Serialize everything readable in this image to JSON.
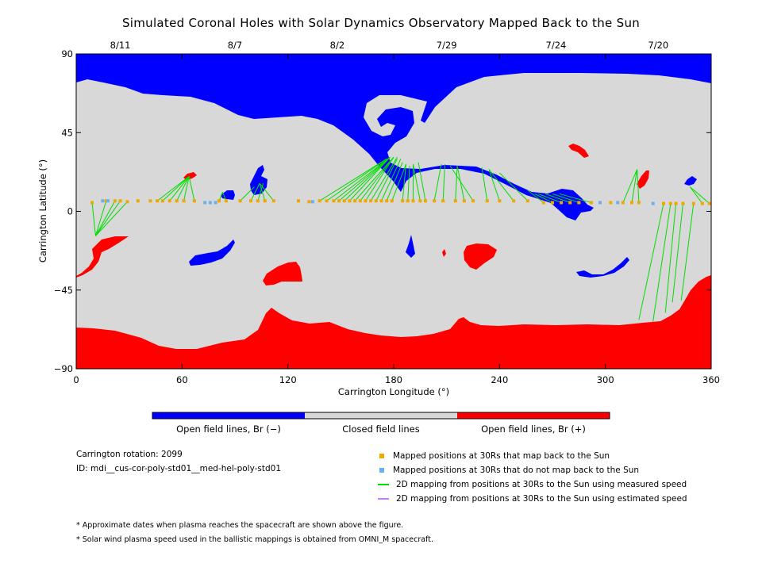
{
  "title": "Simulated Coronal Holes with Solar Dynamics Observatory Mapped Back to the Sun",
  "chart_data": {
    "type": "scatter",
    "title": "Simulated Coronal Holes with Solar Dynamics Observatory Mapped Back to the Sun",
    "xlabel": "Carrington Longitude (°)",
    "ylabel": "Carrington Latitude (°)",
    "xlim": [
      0,
      360
    ],
    "ylim": [
      -90,
      90
    ],
    "x_ticks": [
      0,
      60,
      120,
      180,
      240,
      300,
      360
    ],
    "y_ticks": [
      90,
      45,
      0,
      -45,
      -90
    ],
    "y_tick_labels": [
      "90",
      "45",
      "0",
      "−45",
      "−90"
    ],
    "date_ticks": [
      {
        "lon": 25,
        "label": "8/11"
      },
      {
        "lon": 90,
        "label": "8/7"
      },
      {
        "lon": 148,
        "label": "8/2"
      },
      {
        "lon": 210,
        "label": "7/29"
      },
      {
        "lon": 272,
        "label": "7/24"
      },
      {
        "lon": 330,
        "label": "7/20"
      }
    ],
    "colorbar": {
      "labels": [
        "Open field lines, Br (−)",
        "Closed field lines",
        "Open field lines, Br (+)"
      ],
      "colors": [
        "#0000ff",
        "#d8d8d8",
        "#ff0000"
      ]
    },
    "colors": {
      "negative": "#0000ff",
      "closed": "#d8d8d8",
      "positive": "#ff0000",
      "mapped": "#f0a800",
      "unmapped": "#6ab0f0",
      "measured": "#00dd00",
      "estimated": "#c080f0"
    },
    "series": [
      {
        "name": "Mapped positions at 30Rs that map back to the Sun",
        "points": [
          [
            9,
            5
          ],
          [
            17,
            6
          ],
          [
            22,
            6
          ],
          [
            25,
            6
          ],
          [
            29,
            5.5
          ],
          [
            35,
            6
          ],
          [
            42,
            6
          ],
          [
            46,
            6
          ],
          [
            49,
            6
          ],
          [
            53,
            6
          ],
          [
            57,
            6
          ],
          [
            61,
            6
          ],
          [
            67,
            6
          ],
          [
            81,
            6
          ],
          [
            85,
            6
          ],
          [
            93,
            6
          ],
          [
            99,
            6
          ],
          [
            103,
            6
          ],
          [
            107,
            6
          ],
          [
            112,
            6
          ],
          [
            126,
            6
          ],
          [
            132,
            5.5
          ],
          [
            138,
            6
          ],
          [
            142,
            6
          ],
          [
            146,
            6
          ],
          [
            149,
            6
          ],
          [
            152,
            6
          ],
          [
            155,
            6
          ],
          [
            158,
            6
          ],
          [
            161,
            6
          ],
          [
            164,
            6
          ],
          [
            167,
            6
          ],
          [
            170,
            6
          ],
          [
            173,
            6
          ],
          [
            176,
            6
          ],
          [
            179,
            6
          ],
          [
            185,
            6
          ],
          [
            188,
            6
          ],
          [
            191,
            6
          ],
          [
            195,
            6
          ],
          [
            198,
            6
          ],
          [
            203,
            6
          ],
          [
            208,
            6
          ],
          [
            215,
            6
          ],
          [
            220,
            6
          ],
          [
            225,
            6
          ],
          [
            233,
            6
          ],
          [
            240,
            6
          ],
          [
            248,
            6
          ],
          [
            256,
            6
          ],
          [
            265,
            5
          ],
          [
            270,
            5
          ],
          [
            275,
            5
          ],
          [
            280,
            5
          ],
          [
            285,
            5
          ],
          [
            292,
            5
          ],
          [
            303,
            5
          ],
          [
            310,
            5
          ],
          [
            315,
            5
          ],
          [
            319,
            5
          ],
          [
            333,
            4.5
          ],
          [
            337,
            4.5
          ],
          [
            340,
            4.5
          ],
          [
            344,
            4.5
          ],
          [
            350,
            4.5
          ],
          [
            355,
            4.5
          ],
          [
            359,
            4.5
          ]
        ]
      },
      {
        "name": "Mapped positions at 30Rs that do not map back to the Sun",
        "points": [
          [
            15,
            6
          ],
          [
            18,
            6
          ],
          [
            73,
            5
          ],
          [
            76,
            5
          ],
          [
            79,
            5
          ],
          [
            134,
            5.5
          ],
          [
            297,
            5
          ],
          [
            307,
            5
          ],
          [
            327,
            4.5
          ]
        ]
      },
      {
        "name": "2D mapping from positions at 30Rs to the Sun using measured speed",
        "lines": [
          [
            [
              9,
              5
            ],
            [
              11,
              -14
            ]
          ],
          [
            [
              17,
              6
            ],
            [
              11,
              -14
            ]
          ],
          [
            [
              22,
              6
            ],
            [
              11,
              -14
            ]
          ],
          [
            [
              25,
              6
            ],
            [
              11,
              -14
            ]
          ],
          [
            [
              29,
              5.5
            ],
            [
              11,
              -14
            ]
          ],
          [
            [
              46,
              6
            ],
            [
              64,
              20
            ]
          ],
          [
            [
              49,
              6
            ],
            [
              64,
              20
            ]
          ],
          [
            [
              53,
              6
            ],
            [
              64,
              20
            ]
          ],
          [
            [
              57,
              6
            ],
            [
              64,
              20
            ]
          ],
          [
            [
              61,
              6
            ],
            [
              64,
              20
            ]
          ],
          [
            [
              67,
              6
            ],
            [
              64,
              20
            ]
          ],
          [
            [
              81,
              6
            ],
            [
              83,
              11
            ]
          ],
          [
            [
              85,
              6
            ],
            [
              83,
              11
            ]
          ],
          [
            [
              93,
              6
            ],
            [
              101,
              14
            ]
          ],
          [
            [
              99,
              6
            ],
            [
              104,
              16
            ]
          ],
          [
            [
              103,
              6
            ],
            [
              106,
              16
            ]
          ],
          [
            [
              107,
              6
            ],
            [
              104,
              16
            ]
          ],
          [
            [
              112,
              6
            ],
            [
              104,
              16
            ]
          ],
          [
            [
              138,
              6
            ],
            [
              176,
              30
            ]
          ],
          [
            [
              142,
              6
            ],
            [
              176,
              30
            ]
          ],
          [
            [
              146,
              6
            ],
            [
              178,
              31
            ]
          ],
          [
            [
              149,
              6
            ],
            [
              178,
              31
            ]
          ],
          [
            [
              152,
              6
            ],
            [
              178,
              31
            ]
          ],
          [
            [
              155,
              6
            ],
            [
              178,
              31
            ]
          ],
          [
            [
              158,
              6
            ],
            [
              180,
              31
            ]
          ],
          [
            [
              161,
              6
            ],
            [
              180,
              31
            ]
          ],
          [
            [
              164,
              6
            ],
            [
              180,
              31
            ]
          ],
          [
            [
              167,
              6
            ],
            [
              182,
              31
            ]
          ],
          [
            [
              170,
              6
            ],
            [
              182,
              30
            ]
          ],
          [
            [
              173,
              6
            ],
            [
              184,
              30
            ]
          ],
          [
            [
              176,
              6
            ],
            [
              185,
              28
            ]
          ],
          [
            [
              179,
              6
            ],
            [
              187,
              27
            ]
          ],
          [
            [
              185,
              6
            ],
            [
              187,
              27
            ]
          ],
          [
            [
              188,
              6
            ],
            [
              189,
              26
            ]
          ],
          [
            [
              191,
              6
            ],
            [
              191,
              27
            ]
          ],
          [
            [
              195,
              6
            ],
            [
              191,
              27
            ]
          ],
          [
            [
              198,
              6
            ],
            [
              194,
              28
            ]
          ],
          [
            [
              203,
              6
            ],
            [
              207,
              27
            ]
          ],
          [
            [
              208,
              6
            ],
            [
              209,
              27
            ]
          ],
          [
            [
              215,
              6
            ],
            [
              216,
              26
            ]
          ],
          [
            [
              220,
              6
            ],
            [
              216,
              26
            ]
          ],
          [
            [
              225,
              6
            ],
            [
              212,
              26
            ]
          ],
          [
            [
              233,
              6
            ],
            [
              230,
              25
            ]
          ],
          [
            [
              240,
              6
            ],
            [
              234,
              24
            ]
          ],
          [
            [
              248,
              6
            ],
            [
              234,
              24
            ]
          ],
          [
            [
              256,
              6
            ],
            [
              240,
              22
            ]
          ],
          [
            [
              265,
              5
            ],
            [
              256,
              12
            ]
          ],
          [
            [
              270,
              5
            ],
            [
              260,
              10
            ]
          ],
          [
            [
              275,
              5
            ],
            [
              262,
              10
            ]
          ],
          [
            [
              280,
              5
            ],
            [
              266,
              10
            ]
          ],
          [
            [
              285,
              5
            ],
            [
              270,
              10
            ]
          ],
          [
            [
              292,
              5
            ],
            [
              274,
              10
            ]
          ],
          [
            [
              310,
              5
            ],
            [
              318,
              24
            ]
          ],
          [
            [
              315,
              5
            ],
            [
              318,
              24
            ]
          ],
          [
            [
              319,
              5
            ],
            [
              318,
              24
            ]
          ],
          [
            [
              333,
              4.5
            ],
            [
              319,
              -62
            ]
          ],
          [
            [
              337,
              4.5
            ],
            [
              327,
              -63
            ]
          ],
          [
            [
              340,
              4.5
            ],
            [
              334,
              -58
            ]
          ],
          [
            [
              344,
              4.5
            ],
            [
              338,
              -52
            ]
          ],
          [
            [
              350,
              4.5
            ],
            [
              343,
              -51
            ]
          ],
          [
            [
              355,
              4.5
            ],
            [
              348,
              14
            ]
          ],
          [
            [
              359,
              4.5
            ],
            [
              348,
              14
            ]
          ]
        ]
      },
      {
        "name": "2D mapping from positions at 30Rs to the Sun using estimated speed",
        "lines": []
      }
    ]
  },
  "info": {
    "rotation": "Carrington rotation: 2099",
    "id": "ID: mdi__cus-cor-poly-std01__med-hel-poly-std01"
  },
  "legend": [
    {
      "label": "Mapped positions at 30Rs that map back to the Sun",
      "kind": "square",
      "color": "#f0a800"
    },
    {
      "label": "Mapped positions at 30Rs that do not map back to the Sun",
      "kind": "square",
      "color": "#6ab0f0"
    },
    {
      "label": "2D mapping from positions at 30Rs to the Sun using measured speed",
      "kind": "line",
      "color": "#00dd00"
    },
    {
      "label": "2D mapping from positions at 30Rs to the Sun using estimated speed",
      "kind": "line",
      "color": "#c080f0"
    }
  ],
  "notes": [
    "* Approximate dates when plasma reaches the spacecraft are shown above the figure.",
    "* Solar wind plasma speed used in the ballistic mappings is obtained from OMNI_M spacecraft."
  ]
}
